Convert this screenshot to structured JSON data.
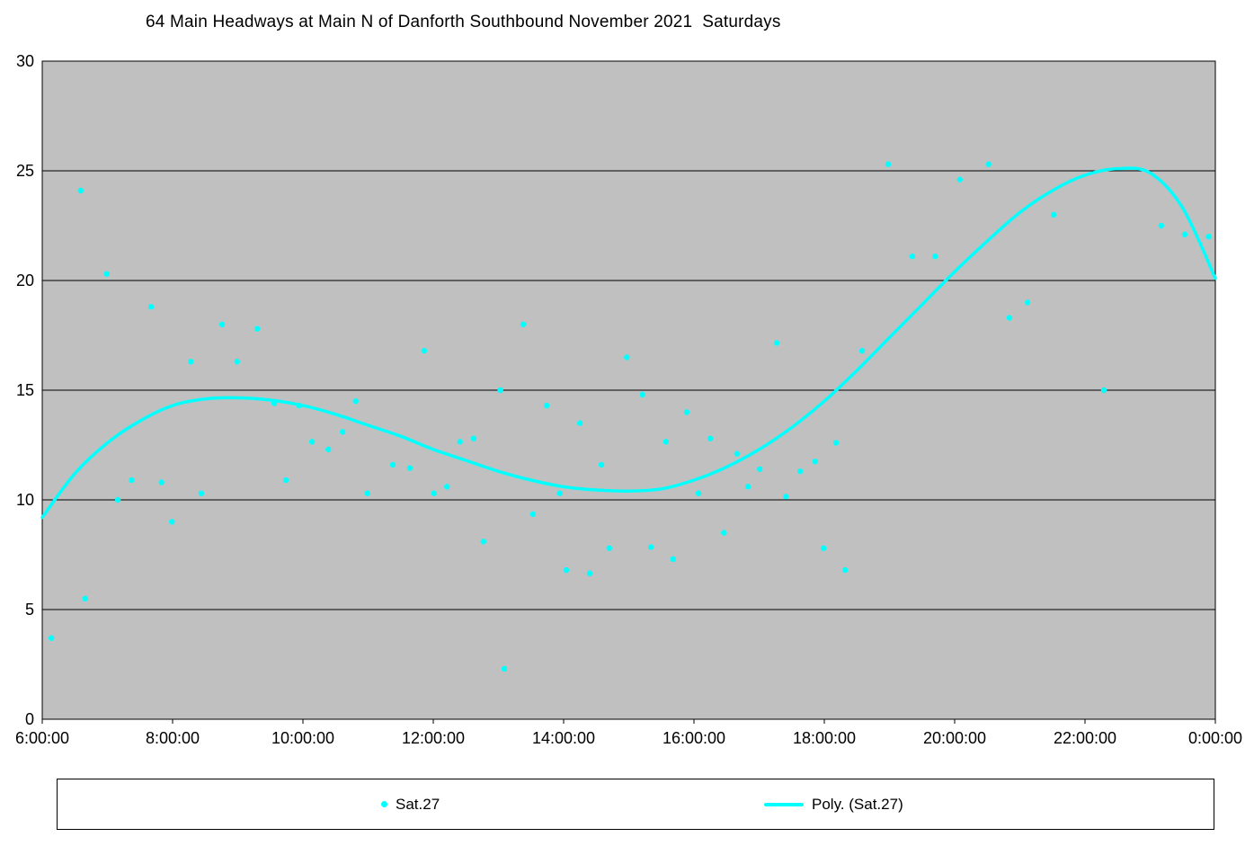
{
  "title": "64 Main Headways at Main N of Danforth Southbound November 2021  Saturdays",
  "legend": {
    "series_label": "Sat.27",
    "trend_label": "Poly. (Sat.27)"
  },
  "chart_data": {
    "type": "scatter",
    "title": "64 Main Headways at Main N of Danforth Southbound November 2021  Saturdays",
    "xlabel": "",
    "ylabel": "",
    "xlim": [
      6,
      24
    ],
    "ylim": [
      0,
      30
    ],
    "grid": "horizontal",
    "legend_position": "bottom",
    "x_ticks": [
      {
        "value": 6,
        "label": "6:00:00"
      },
      {
        "value": 8,
        "label": "8:00:00"
      },
      {
        "value": 10,
        "label": "10:00:00"
      },
      {
        "value": 12,
        "label": "12:00:00"
      },
      {
        "value": 14,
        "label": "14:00:00"
      },
      {
        "value": 16,
        "label": "16:00:00"
      },
      {
        "value": 18,
        "label": "18:00:00"
      },
      {
        "value": 20,
        "label": "20:00:00"
      },
      {
        "value": 22,
        "label": "22:00:00"
      },
      {
        "value": 24,
        "label": "0:00:00"
      }
    ],
    "y_ticks": [
      0,
      5,
      10,
      15,
      20,
      25,
      30
    ],
    "colors": {
      "series": "#00FFFF",
      "plot_bg": "#C0C0C0",
      "grid": "#000000",
      "axis": "#000000"
    },
    "series": [
      {
        "name": "Sat.27",
        "marker": "dot",
        "points": [
          [
            6.14,
            3.7
          ],
          [
            6.59,
            24.1
          ],
          [
            6.66,
            5.5
          ],
          [
            6.99,
            20.3
          ],
          [
            7.16,
            10.0
          ],
          [
            7.37,
            10.9
          ],
          [
            7.67,
            18.8
          ],
          [
            7.83,
            10.8
          ],
          [
            7.99,
            9.0
          ],
          [
            8.28,
            16.3
          ],
          [
            8.44,
            10.3
          ],
          [
            8.76,
            18.0
          ],
          [
            8.99,
            16.3
          ],
          [
            9.3,
            17.8
          ],
          [
            9.56,
            14.4
          ],
          [
            9.74,
            10.9
          ],
          [
            9.94,
            14.3
          ],
          [
            10.14,
            12.65
          ],
          [
            10.39,
            12.3
          ],
          [
            10.61,
            13.1
          ],
          [
            10.81,
            14.5
          ],
          [
            10.99,
            10.3
          ],
          [
            11.38,
            11.6
          ],
          [
            11.64,
            11.45
          ],
          [
            11.86,
            16.8
          ],
          [
            12.01,
            10.3
          ],
          [
            12.21,
            10.6
          ],
          [
            12.41,
            12.65
          ],
          [
            12.62,
            12.8
          ],
          [
            12.77,
            8.1
          ],
          [
            13.03,
            15.0
          ],
          [
            13.09,
            2.3
          ],
          [
            13.38,
            18.0
          ],
          [
            13.53,
            9.35
          ],
          [
            13.74,
            14.3
          ],
          [
            13.94,
            10.3
          ],
          [
            14.04,
            6.8
          ],
          [
            14.25,
            13.5
          ],
          [
            14.4,
            6.65
          ],
          [
            14.58,
            11.6
          ],
          [
            14.7,
            7.8
          ],
          [
            14.97,
            16.5
          ],
          [
            15.21,
            14.8
          ],
          [
            15.34,
            7.85
          ],
          [
            15.57,
            12.65
          ],
          [
            15.68,
            7.3
          ],
          [
            15.89,
            14.0
          ],
          [
            16.07,
            10.3
          ],
          [
            16.25,
            12.8
          ],
          [
            16.46,
            8.5
          ],
          [
            16.66,
            12.1
          ],
          [
            16.83,
            10.6
          ],
          [
            17.01,
            11.4
          ],
          [
            17.27,
            17.15
          ],
          [
            17.41,
            10.15
          ],
          [
            17.63,
            11.3
          ],
          [
            17.86,
            11.75
          ],
          [
            17.99,
            7.8
          ],
          [
            18.18,
            12.6
          ],
          [
            18.32,
            6.8
          ],
          [
            18.58,
            16.8
          ],
          [
            18.98,
            25.3
          ],
          [
            19.35,
            21.1
          ],
          [
            19.7,
            21.1
          ],
          [
            20.08,
            24.6
          ],
          [
            20.52,
            25.3
          ],
          [
            20.84,
            18.3
          ],
          [
            21.12,
            19.0
          ],
          [
            21.52,
            23.0
          ],
          [
            22.29,
            15.0
          ],
          [
            23.17,
            22.5
          ],
          [
            23.53,
            22.1
          ],
          [
            23.9,
            22.0
          ]
        ]
      }
    ],
    "trendline": {
      "name": "Poly. (Sat.27)",
      "type": "polynomial",
      "points": [
        [
          6.0,
          9.2
        ],
        [
          6.5,
          11.2
        ],
        [
          7.0,
          12.6
        ],
        [
          7.5,
          13.6
        ],
        [
          8.0,
          14.3
        ],
        [
          8.5,
          14.6
        ],
        [
          9.0,
          14.65
        ],
        [
          9.5,
          14.55
        ],
        [
          10.0,
          14.3
        ],
        [
          10.5,
          13.9
        ],
        [
          11.0,
          13.4
        ],
        [
          11.5,
          12.9
        ],
        [
          12.0,
          12.3
        ],
        [
          12.5,
          11.8
        ],
        [
          13.0,
          11.3
        ],
        [
          13.5,
          10.9
        ],
        [
          14.0,
          10.6
        ],
        [
          14.5,
          10.45
        ],
        [
          15.0,
          10.4
        ],
        [
          15.5,
          10.5
        ],
        [
          16.0,
          10.9
        ],
        [
          16.5,
          11.5
        ],
        [
          17.0,
          12.3
        ],
        [
          17.5,
          13.3
        ],
        [
          18.0,
          14.5
        ],
        [
          18.5,
          15.9
        ],
        [
          19.0,
          17.4
        ],
        [
          19.5,
          18.9
        ],
        [
          20.0,
          20.4
        ],
        [
          20.5,
          21.8
        ],
        [
          21.0,
          23.1
        ],
        [
          21.5,
          24.1
        ],
        [
          22.0,
          24.8
        ],
        [
          22.5,
          25.1
        ],
        [
          23.0,
          24.9
        ],
        [
          23.5,
          23.3
        ],
        [
          24.0,
          20.1
        ]
      ]
    }
  }
}
